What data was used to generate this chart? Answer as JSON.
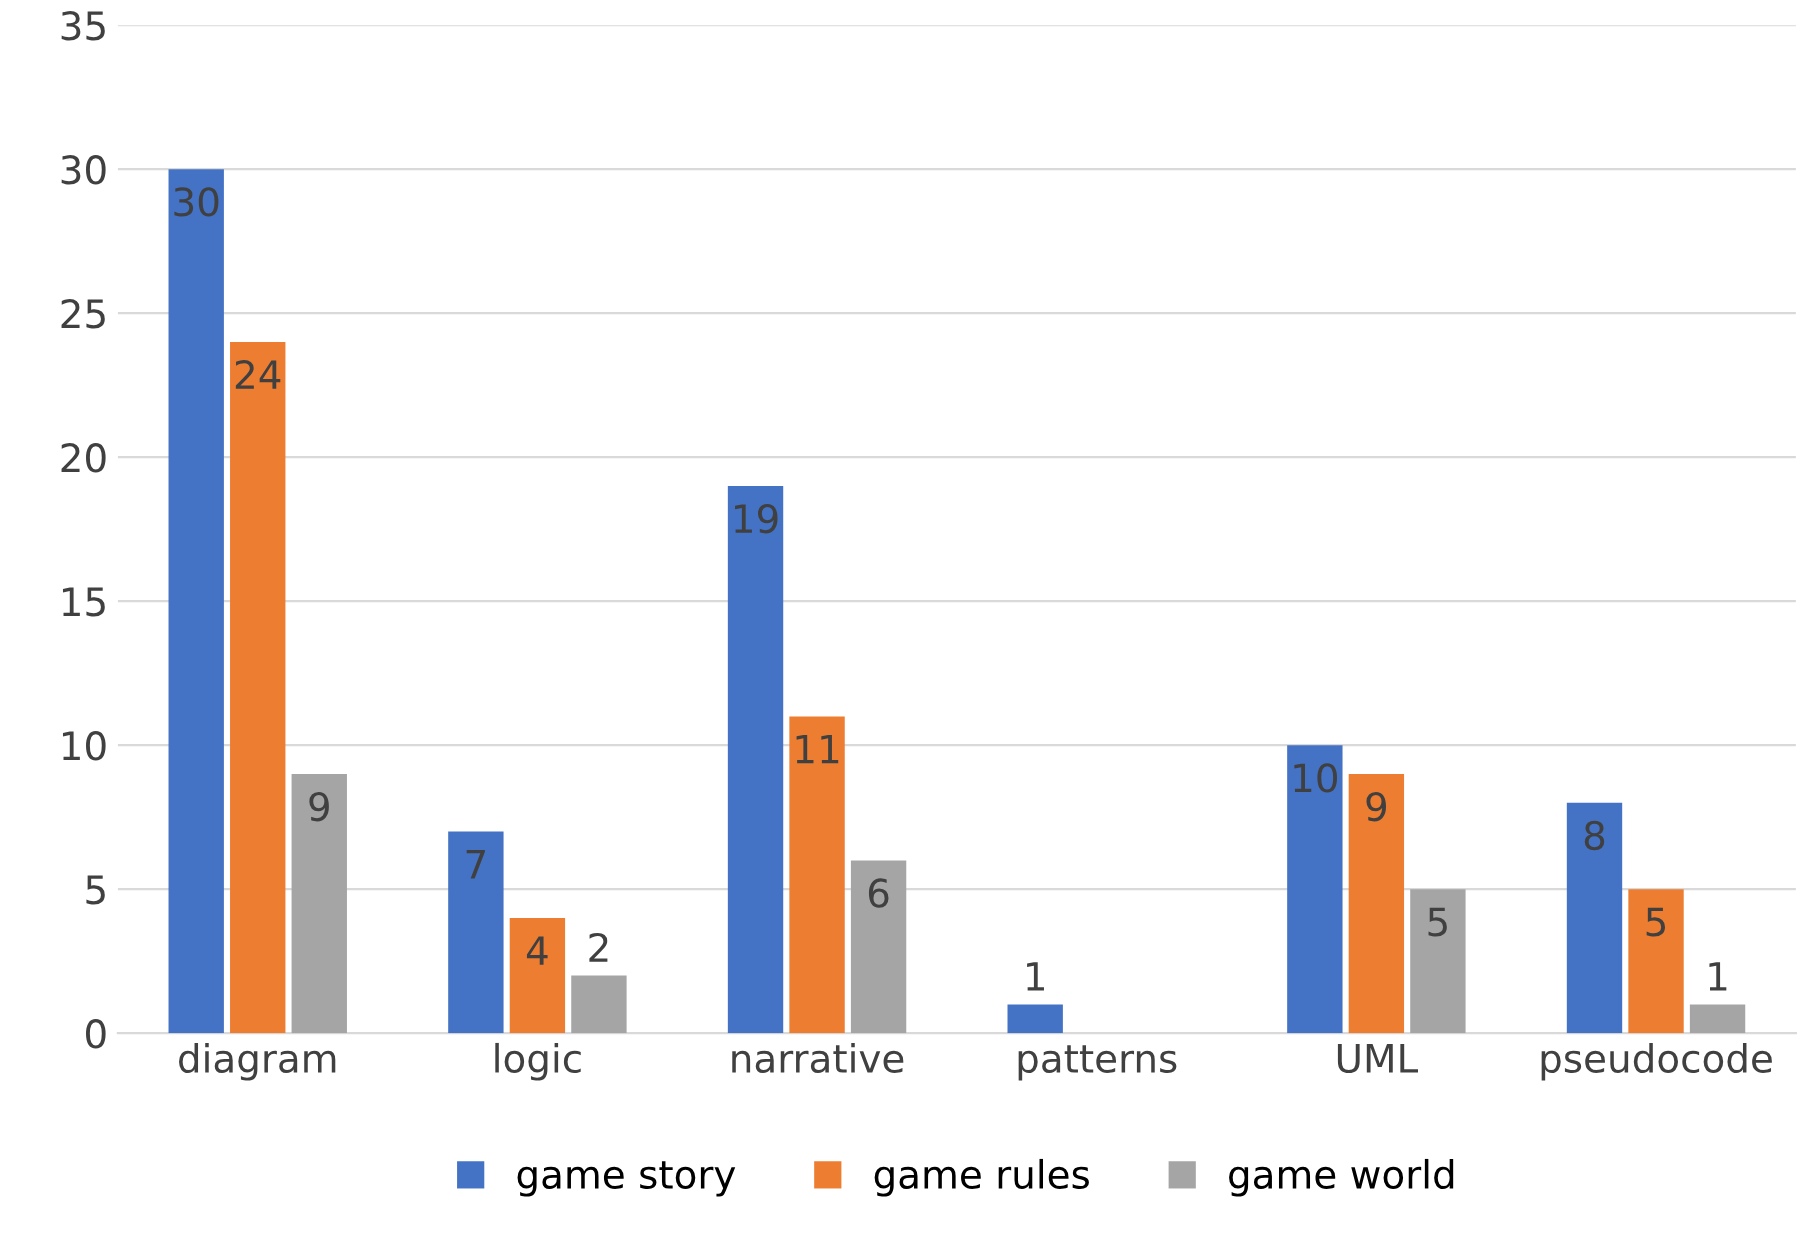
{
  "chart_data": {
    "type": "bar",
    "categories": [
      "diagram",
      "logic",
      "narrative",
      "patterns",
      "UML",
      "pseudocode"
    ],
    "series": [
      {
        "name": "game story",
        "color": "#4472c4",
        "values": [
          30,
          7,
          19,
          1,
          10,
          8
        ],
        "value_labels": [
          "30",
          "7",
          "19",
          "1",
          "10",
          "8"
        ]
      },
      {
        "name": "game rules",
        "color": "#ed7d31",
        "values": [
          24,
          4,
          11,
          0,
          9,
          5
        ],
        "value_labels": [
          "24",
          "4",
          "11",
          null,
          "9",
          "5"
        ]
      },
      {
        "name": "game world",
        "color": "#a5a5a5",
        "values": [
          9,
          2,
          6,
          0,
          5,
          1
        ],
        "value_labels": [
          "9",
          "2",
          "6",
          null,
          "5",
          "1"
        ]
      }
    ],
    "ylim": [
      0,
      35
    ],
    "yticks": [
      0,
      5,
      10,
      15,
      20,
      25,
      30,
      35
    ],
    "grid": "y",
    "legend": "bottom"
  }
}
